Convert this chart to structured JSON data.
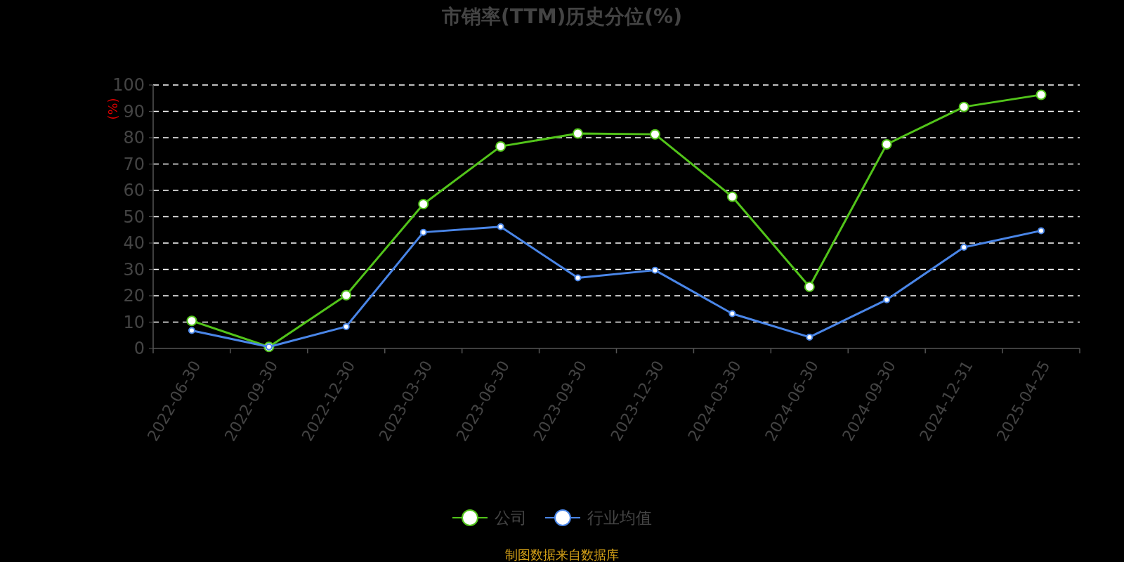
{
  "chart_data": {
    "type": "line",
    "title": "市销率(TTM)历史分位(%)",
    "ylabel": "(%)",
    "categories": [
      "2022-06-30",
      "2022-09-30",
      "2022-12-30",
      "2023-03-30",
      "2023-06-30",
      "2023-09-30",
      "2023-12-30",
      "2024-03-30",
      "2024-06-30",
      "2024-09-30",
      "2024-12-31",
      "2025-04-25"
    ],
    "series": [
      {
        "name": "公司",
        "color": "#52c41a",
        "values": [
          10.5,
          0.6,
          20.2,
          54.8,
          76.7,
          81.6,
          81.3,
          57.6,
          23.4,
          77.5,
          91.7,
          96.3
        ]
      },
      {
        "name": "行业均值",
        "color": "#4a86e8",
        "values": [
          6.8,
          0.6,
          8.3,
          44.1,
          46.2,
          26.8,
          29.7,
          13.2,
          4.3,
          18.5,
          38.4,
          44.7
        ]
      }
    ],
    "ylim": [
      0,
      100
    ],
    "yticks": [
      0,
      10,
      20,
      30,
      40,
      50,
      60,
      70,
      80,
      90,
      100
    ],
    "grid": "y",
    "legend": "bottom",
    "marker": "circle",
    "annotations": [
      "制图数据来自数据库"
    ]
  }
}
